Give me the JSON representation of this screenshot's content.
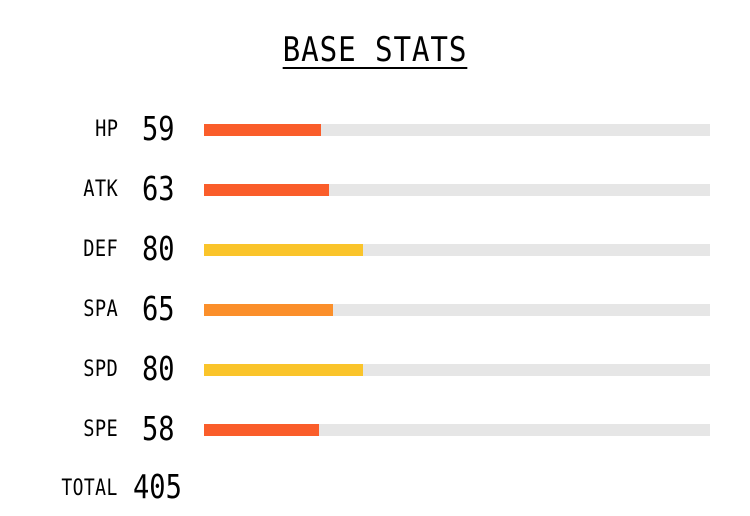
{
  "title": "BASE STATS",
  "stats": [
    {
      "label": "HP",
      "value": "59",
      "fraction": 0.231,
      "color": "#fa5d2a"
    },
    {
      "label": "ATK",
      "value": "63",
      "fraction": 0.247,
      "color": "#fa5d2a"
    },
    {
      "label": "DEF",
      "value": "80",
      "fraction": 0.314,
      "color": "#fac42a"
    },
    {
      "label": "SPA",
      "value": "65",
      "fraction": 0.255,
      "color": "#fb8f2a"
    },
    {
      "label": "SPD",
      "value": "80",
      "fraction": 0.314,
      "color": "#fac42a"
    },
    {
      "label": "SPE",
      "value": "58",
      "fraction": 0.227,
      "color": "#fa5d2a"
    }
  ],
  "total": {
    "label": "TOTAL",
    "value": "405"
  }
}
